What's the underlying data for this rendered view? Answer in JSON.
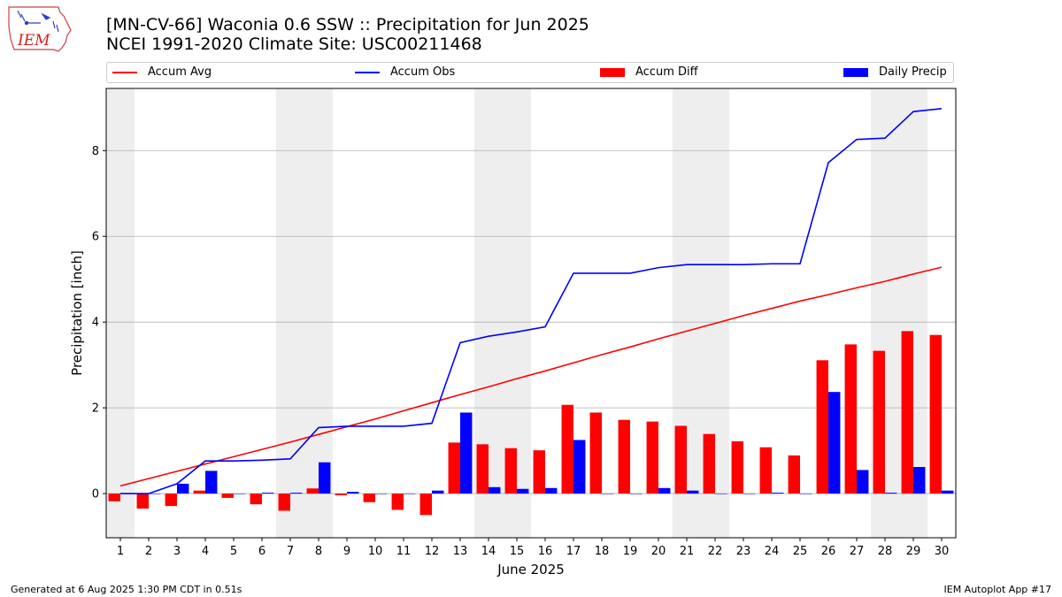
{
  "header": {
    "title_line1": "[MN-CV-66] Waconia 0.6 SSW :: Precipitation for Jun 2025",
    "title_line2": "NCEI 1991-2020 Climate Site: USC00211468"
  },
  "logo": {
    "text": "IEM",
    "icon": "iowa-state-iem-logo"
  },
  "footer": {
    "left": "Generated at 6 Aug 2025 1:30 PM CDT in 0.51s",
    "right": "IEM Autoplot App #17"
  },
  "colors": {
    "avg": "#ff0000",
    "obs": "#0000ff",
    "diff": "#ff0000",
    "daily": "#0000ff",
    "weekend": "#eeeeee",
    "grid": "#b0b0b0"
  },
  "chart_data": {
    "type": "bar",
    "xlabel": "June 2025",
    "ylabel": "Precipitation [inch]",
    "ylim": [
      -1.03,
      9.45
    ],
    "xlim": [
      0.5,
      30.5
    ],
    "yticks": [
      0,
      2,
      4,
      6,
      8
    ],
    "grid": "horizontal",
    "legend_placement": "top",
    "legend": {
      "avg": "Accum Avg",
      "obs": "Accum Obs",
      "diff": "Accum Diff",
      "daily": "Daily Precip"
    },
    "days": [
      1,
      2,
      3,
      4,
      5,
      6,
      7,
      8,
      9,
      10,
      11,
      12,
      13,
      14,
      15,
      16,
      17,
      18,
      19,
      20,
      21,
      22,
      23,
      24,
      25,
      26,
      27,
      28,
      29,
      30
    ],
    "weekend_days": [
      1,
      7,
      8,
      14,
      15,
      21,
      22,
      28,
      29
    ],
    "series": [
      {
        "name": "Accum Avg",
        "type": "line",
        "values": [
          0.18,
          0.35,
          0.52,
          0.69,
          0.86,
          1.03,
          1.2,
          1.38,
          1.56,
          1.74,
          1.93,
          2.12,
          2.31,
          2.49,
          2.68,
          2.86,
          3.05,
          3.24,
          3.42,
          3.61,
          3.79,
          3.97,
          4.15,
          4.32,
          4.49,
          4.64,
          4.8,
          4.95,
          5.12,
          5.28
        ]
      },
      {
        "name": "Accum Obs",
        "type": "line",
        "values": [
          0.0,
          0.0,
          0.23,
          0.76,
          0.76,
          0.78,
          0.81,
          1.54,
          1.57,
          1.57,
          1.57,
          1.64,
          3.52,
          3.67,
          3.77,
          3.89,
          5.14,
          5.14,
          5.14,
          5.27,
          5.34,
          5.34,
          5.34,
          5.36,
          5.36,
          7.72,
          8.26,
          8.29,
          8.91,
          8.98
        ]
      },
      {
        "name": "Accum Diff",
        "type": "bar",
        "values": [
          -0.18,
          -0.35,
          -0.29,
          0.07,
          -0.1,
          -0.25,
          -0.4,
          0.12,
          -0.04,
          -0.2,
          -0.38,
          -0.5,
          1.19,
          1.15,
          1.06,
          1.01,
          2.07,
          1.89,
          1.72,
          1.68,
          1.58,
          1.39,
          1.22,
          1.08,
          0.89,
          3.11,
          3.48,
          3.33,
          3.79,
          3.7
        ]
      },
      {
        "name": "Daily Precip",
        "type": "bar",
        "values": [
          0.0,
          0.0,
          0.23,
          0.53,
          0.0,
          0.02,
          0.02,
          0.73,
          0.04,
          0.0,
          0.0,
          0.07,
          1.89,
          0.15,
          0.11,
          0.13,
          1.25,
          0.0,
          0.0,
          0.13,
          0.07,
          0.0,
          0.0,
          0.02,
          0.0,
          2.37,
          0.55,
          0.02,
          0.62,
          0.07
        ]
      }
    ]
  }
}
